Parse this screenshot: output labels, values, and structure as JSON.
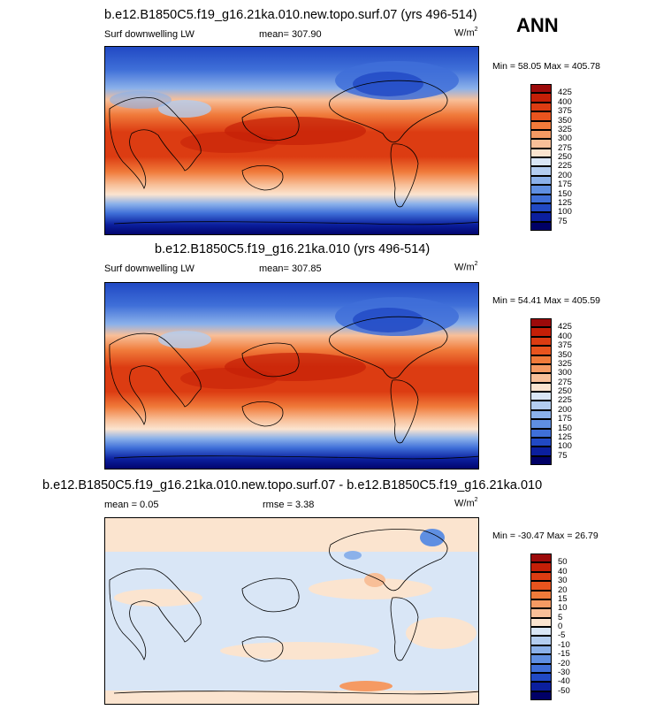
{
  "season": "ANN",
  "panels": [
    {
      "title": "b.e12.B1850C5.f19_g16.21ka.010.new.topo.surf.07 (yrs 496-514)",
      "left_label": "Surf downwelling LW",
      "mean_label": "mean= 307.90",
      "rmse_label": "",
      "units": "W/m",
      "units_sup": "2",
      "minmax": "Min =  58.05 Max = 405.78",
      "type": "abs"
    },
    {
      "title": "b.e12.B1850C5.f19_g16.21ka.010 (yrs 496-514)",
      "left_label": "Surf downwelling LW",
      "mean_label": "mean= 307.85",
      "rmse_label": "",
      "units": "W/m",
      "units_sup": "2",
      "minmax": "Min =  54.41 Max = 405.59",
      "type": "abs"
    },
    {
      "title": "b.e12.B1850C5.f19_g16.21ka.010.new.topo.surf.07 - b.e12.B1850C5.f19_g16.21ka.010",
      "left_label": "mean =   0.05",
      "mean_label": "",
      "rmse_label": "rmse =   3.38",
      "units": "W/m",
      "units_sup": "2",
      "minmax": "Min = -30.47 Max =  26.79",
      "type": "diff"
    }
  ],
  "chart_data": [
    {
      "type": "heatmap",
      "title": "b.e12.B1850C5.f19_g16.21ka.010.new.topo.surf.07 (yrs 496-514)",
      "variable": "Surf downwelling LW",
      "units": "W/m2",
      "mean": 307.9,
      "min": 58.05,
      "max": 405.78,
      "colorbar_levels": [
        "425",
        "400",
        "375",
        "350",
        "325",
        "300",
        "275",
        "250",
        "225",
        "200",
        "175",
        "150",
        "125",
        "100",
        "75"
      ],
      "colorbar_colors": [
        "#9c0a0a",
        "#c41f07",
        "#dc3c12",
        "#e9541e",
        "#f07a3a",
        "#f59a63",
        "#f8bf98",
        "#fbe4cf",
        "#d9e6f6",
        "#b3cdf0",
        "#8bb1ea",
        "#5f8fe2",
        "#3f6fd8",
        "#2149c4",
        "#0b1f9e",
        "#000066"
      ]
    },
    {
      "type": "heatmap",
      "title": "b.e12.B1850C5.f19_g16.21ka.010 (yrs 496-514)",
      "variable": "Surf downwelling LW",
      "units": "W/m2",
      "mean": 307.85,
      "min": 54.41,
      "max": 405.59,
      "colorbar_levels": [
        "425",
        "400",
        "375",
        "350",
        "325",
        "300",
        "275",
        "250",
        "225",
        "200",
        "175",
        "150",
        "125",
        "100",
        "75"
      ],
      "colorbar_colors": [
        "#9c0a0a",
        "#c41f07",
        "#dc3c12",
        "#e9541e",
        "#f07a3a",
        "#f59a63",
        "#f8bf98",
        "#fbe4cf",
        "#d9e6f6",
        "#b3cdf0",
        "#8bb1ea",
        "#5f8fe2",
        "#3f6fd8",
        "#2149c4",
        "#0b1f9e",
        "#000066"
      ]
    },
    {
      "type": "heatmap",
      "title": "b.e12.B1850C5.f19_g16.21ka.010.new.topo.surf.07 - b.e12.B1850C5.f19_g16.21ka.010",
      "units": "W/m2",
      "mean": 0.05,
      "rmse": 3.38,
      "min": -30.47,
      "max": 26.79,
      "colorbar_levels": [
        "50",
        "40",
        "30",
        "20",
        "15",
        "10",
        "5",
        "0",
        "-5",
        "-10",
        "-15",
        "-20",
        "-30",
        "-40",
        "-50"
      ],
      "colorbar_colors": [
        "#9c0a0a",
        "#c41f07",
        "#dc3c12",
        "#e9541e",
        "#f07a3a",
        "#f59a63",
        "#f8bf98",
        "#fbe4cf",
        "#d9e6f6",
        "#b3cdf0",
        "#8bb1ea",
        "#5f8fe2",
        "#3f6fd8",
        "#2149c4",
        "#0b1f9e",
        "#000066"
      ]
    }
  ]
}
